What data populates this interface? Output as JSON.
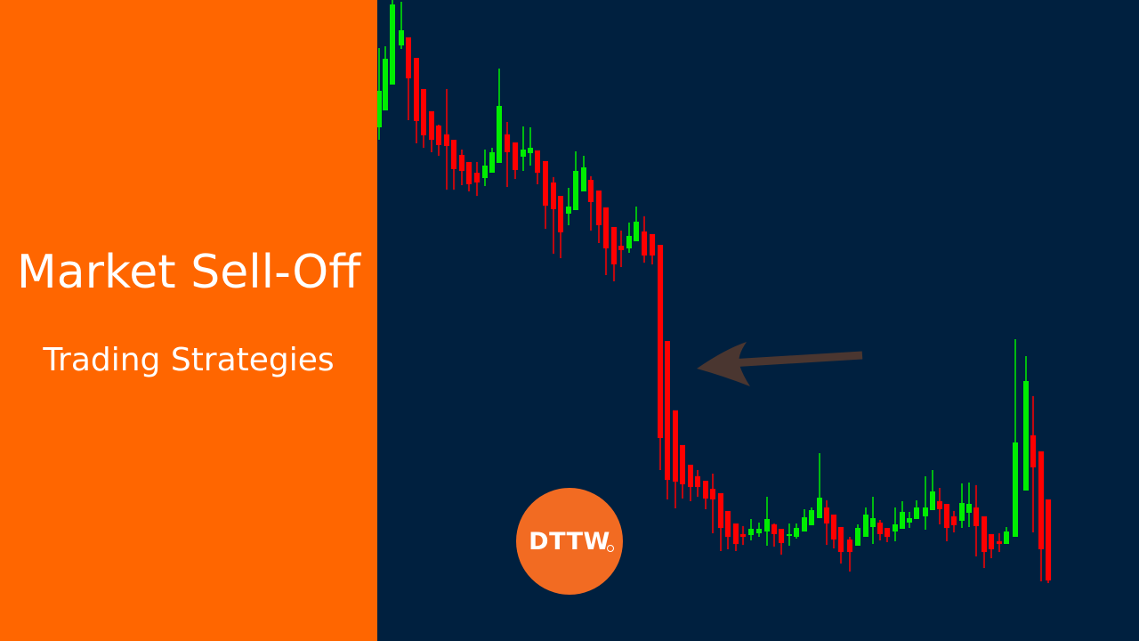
{
  "left_panel": {
    "title": "Market Sell-Off",
    "subtitle": "Trading Strategies",
    "background_color": "#ff6600"
  },
  "chart_panel": {
    "background_color": "#00203f",
    "bullish_color": "#00ee00",
    "bearish_color": "#ff0000",
    "arrow_color": "#4a3630",
    "arrow_icon": "arrow-left-icon"
  },
  "logo": {
    "text": "DTTW",
    "color": "#f26b22",
    "registered_icon": "registered-mark-icon"
  }
}
